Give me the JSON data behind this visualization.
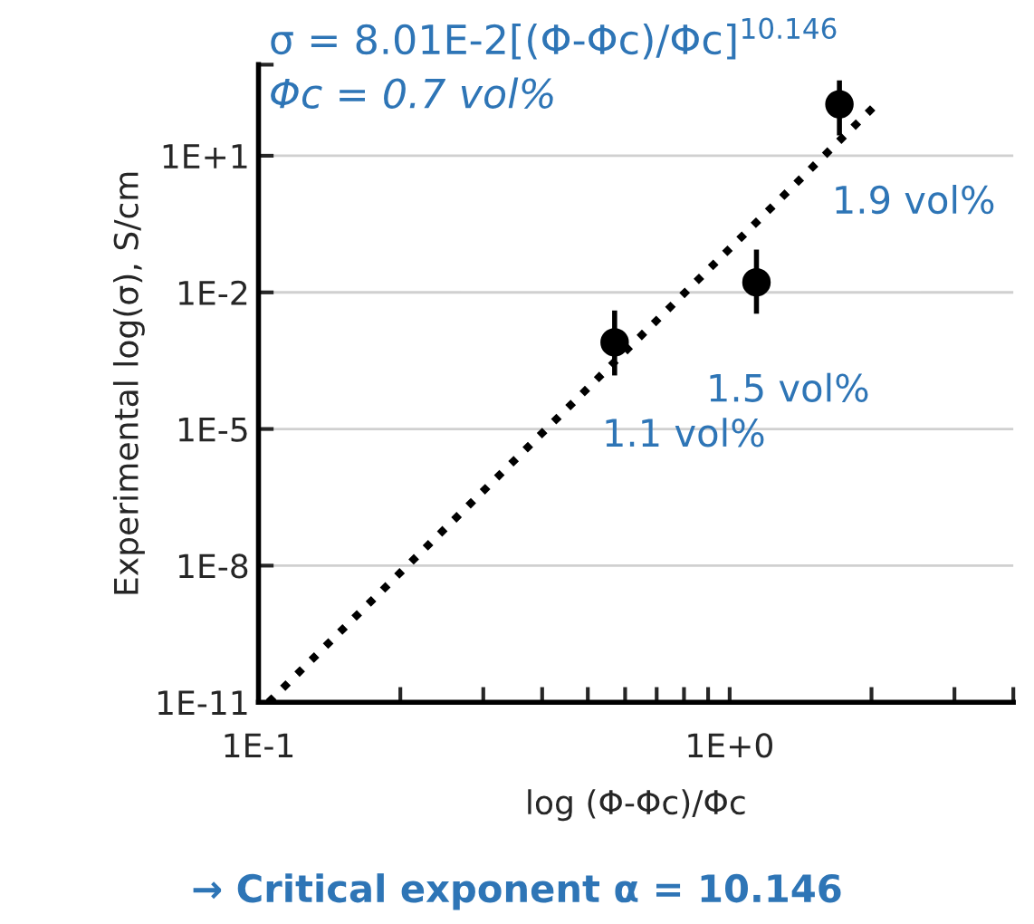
{
  "chart_data": {
    "type": "scatter",
    "xlabel": "log (Φ-Φc)/Φc",
    "ylabel": "Experimental log(σ), S/cm",
    "log": "xy",
    "xlim": [
      0.1,
      4
    ],
    "ylim": [
      1e-11,
      1000
    ],
    "xticks": [
      {
        "value": 0.1,
        "label": "1E-1"
      },
      {
        "value": 0.2,
        "label": null
      },
      {
        "value": 0.3,
        "label": null
      },
      {
        "value": 0.4,
        "label": null
      },
      {
        "value": 0.5,
        "label": null
      },
      {
        "value": 0.6,
        "label": null
      },
      {
        "value": 0.7,
        "label": null
      },
      {
        "value": 0.8,
        "label": null
      },
      {
        "value": 0.9,
        "label": null
      },
      {
        "value": 1,
        "label": "1E+0"
      },
      {
        "value": 2,
        "label": null
      },
      {
        "value": 3,
        "label": null
      },
      {
        "value": 4,
        "label": null
      }
    ],
    "yticks": [
      {
        "value": 1e-11,
        "label": "1E-11"
      },
      {
        "value": 1e-08,
        "label": "1E-8"
      },
      {
        "value": 1e-05,
        "label": "1E-5"
      },
      {
        "value": 0.01,
        "label": "1E-2"
      },
      {
        "value": 10,
        "label": "1E+1"
      },
      {
        "value": 1000,
        "label": null
      }
    ],
    "grid": "y",
    "legend": false,
    "series": [
      {
        "color": "#000000",
        "marker": "circle",
        "x": [
          0.57,
          1.14,
          1.71
        ],
        "values": [
          0.0008,
          0.0166,
          135
        ],
        "errors": [
          [
            0.00015,
            0.004
          ],
          [
            0.0034,
            0.087
          ],
          [
            28,
            450
          ]
        ]
      },
      {
        "type": "line",
        "color": "#000000",
        "line_style": "dotted",
        "marker": "none",
        "x": [
          0.105,
          2.07
        ],
        "values": [
          1e-11,
          150
        ]
      }
    ],
    "annotations": [
      "σ = 8.01E-2[(Φ-Φc)/Φc]$^{10.146}$",
      "Φc = 0.7 vol%",
      {
        "text": "1.1 vol%",
        "x": 0.57,
        "y": 0.0008
      },
      {
        "text": "1.5 vol%",
        "x": 1.14,
        "y": 0.0166
      },
      {
        "text": "1.9 vol%",
        "x": 1.71,
        "y": 135
      },
      "→ Critical exponent α = 10.146"
    ]
  }
}
